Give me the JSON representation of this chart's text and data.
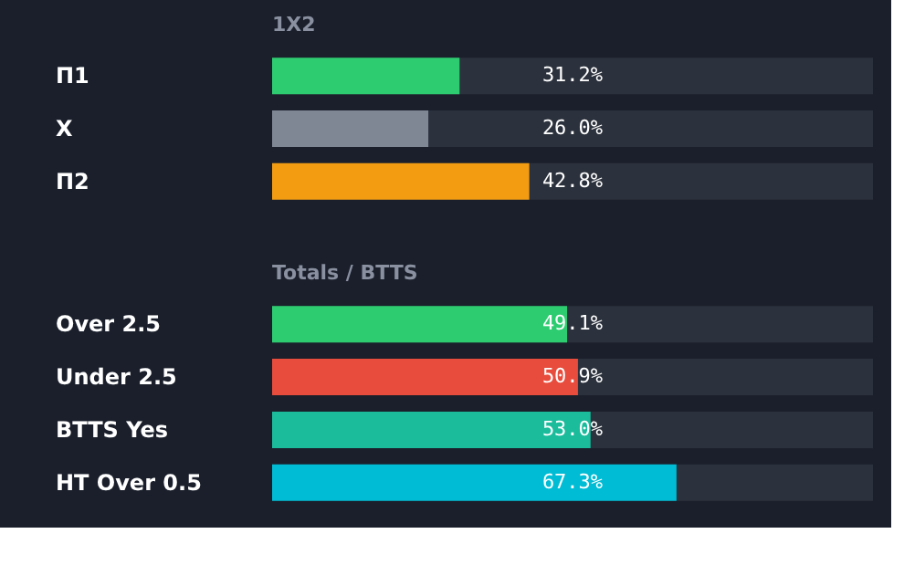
{
  "chart_data": [
    {
      "type": "bar",
      "orientation": "horizontal",
      "title": "1X2",
      "categories": [
        "П1",
        "X",
        "П2"
      ],
      "values": [
        31.2,
        26.0,
        42.8
      ],
      "colors": [
        "#2ecc71",
        "#7f8694",
        "#f39c12"
      ],
      "xlim": [
        0,
        100
      ],
      "data_labels": true,
      "value_labels": [
        "31.2%",
        "26.0%",
        "42.8%"
      ],
      "tick_labels": "y"
    },
    {
      "type": "bar",
      "orientation": "horizontal",
      "title": "Totals / BTTS",
      "categories": [
        "Over 2.5",
        "Under 2.5",
        "BTTS Yes",
        "HT Over 0.5"
      ],
      "values": [
        49.1,
        50.9,
        53.0,
        67.3
      ],
      "colors": [
        "#2ecc71",
        "#e74c3c",
        "#1abc9c",
        "#00bcd4"
      ],
      "xlim": [
        0,
        100
      ],
      "data_labels": true,
      "value_labels": [
        "49.1%",
        "50.9%",
        "53.0%",
        "67.3%"
      ],
      "tick_labels": "y"
    }
  ]
}
